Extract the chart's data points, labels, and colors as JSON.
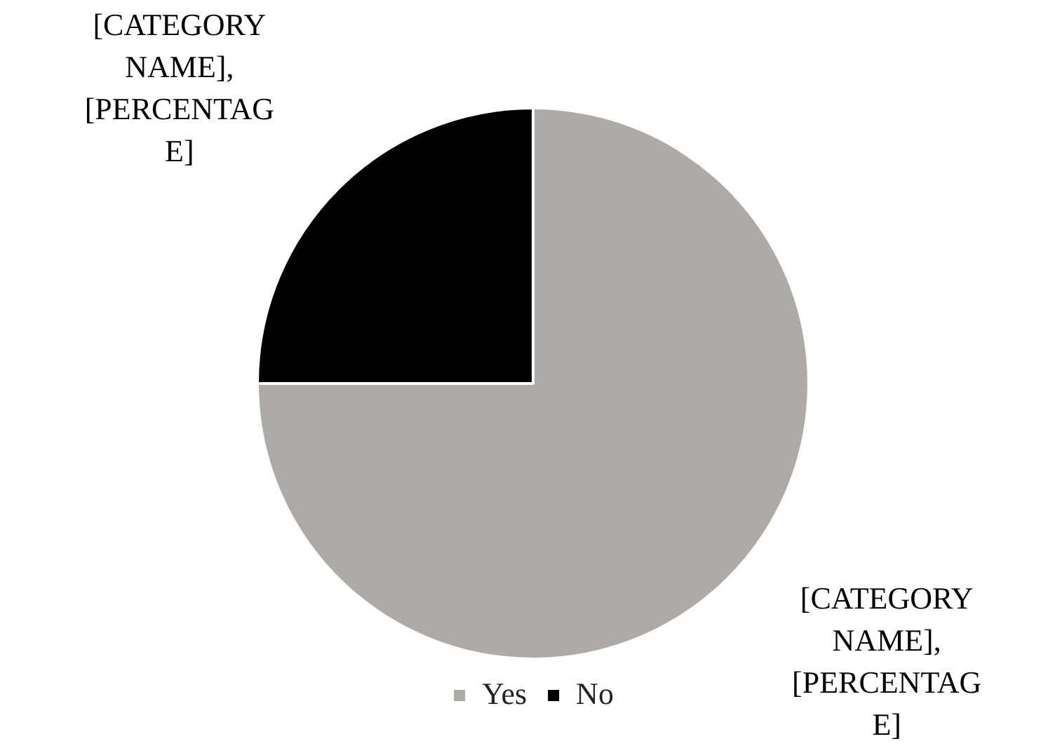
{
  "chart_data": {
    "type": "pie",
    "categories": [
      "Yes",
      "No"
    ],
    "values": [
      75,
      25
    ],
    "colors": [
      "#aeaaaa",
      "#000000"
    ],
    "value_labels": [
      "[CATEGORY NAME], [PERCENTAGE]",
      "[CATEGORY NAME], [PERCENTAGE]"
    ],
    "legend": "bottom"
  }
}
